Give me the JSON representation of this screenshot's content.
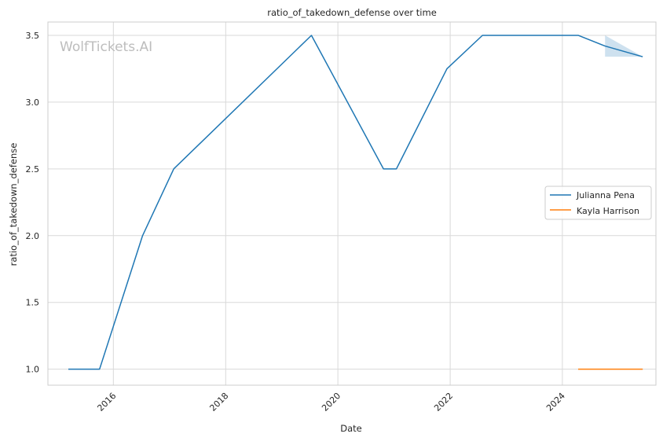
{
  "chart_data": {
    "type": "line",
    "title": "ratio_of_takedown_defense over time",
    "xlabel": "Date",
    "ylabel": "ratio_of_takedown_defense",
    "watermark": "WolfTickets.AI",
    "x_ticks": [
      "2016",
      "2018",
      "2020",
      "2022",
      "2024"
    ],
    "y_ticks": [
      "1.0",
      "1.5",
      "2.0",
      "2.5",
      "3.0",
      "3.5"
    ],
    "ylim": [
      0.88,
      3.6
    ],
    "xlim": [
      "2014-11-01",
      "2025-09-01"
    ],
    "grid": true,
    "legend_position": "center-right",
    "series": [
      {
        "name": "Julianna Pena",
        "color": "#1f77b4",
        "x": [
          "2015-03-14",
          "2015-10-03",
          "2016-07-09",
          "2017-01-28",
          "2019-07-13",
          "2020-10-24",
          "2021-01-16",
          "2021-12-11",
          "2022-07-30",
          "2024-04-13",
          "2024-10-05",
          "2025-06-07"
        ],
        "values": [
          1.0,
          1.0,
          2.0,
          2.5,
          3.5,
          2.5,
          2.5,
          3.25,
          3.5,
          3.5,
          3.42,
          3.34
        ],
        "band": {
          "x": [
            "2024-10-05",
            "2025-06-07"
          ],
          "upper": [
            3.5,
            3.34
          ],
          "lower": [
            3.34,
            3.34
          ]
        }
      },
      {
        "name": "Kayla Harrison",
        "color": "#ff7f0e",
        "x": [
          "2024-04-13",
          "2025-06-07"
        ],
        "values": [
          1.0,
          1.0
        ]
      }
    ]
  }
}
